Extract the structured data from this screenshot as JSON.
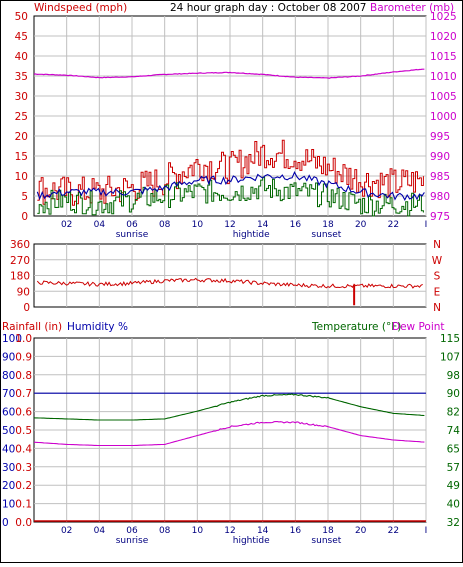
{
  "header": {
    "left_title": "Windspeed (mph)",
    "center_title": "24 hour graph day : October 08 2007",
    "right_title": "Barometer (mb)"
  },
  "x_axis": {
    "hour_ticks": [
      "02",
      "04",
      "06",
      "08",
      "10",
      "12",
      "14",
      "16",
      "18",
      "20",
      "22",
      "I"
    ],
    "events": [
      {
        "label": "sunrise",
        "hour": 6.0
      },
      {
        "label": "hightide",
        "hour": 13.3
      },
      {
        "label": "sunset",
        "hour": 17.9
      }
    ]
  },
  "colors": {
    "red": "#cc0000",
    "green": "#006600",
    "blue": "#0000aa",
    "magenta": "#cc00cc",
    "grid": "#c0c0c0"
  },
  "chart_data": [
    {
      "type": "line",
      "panel": "wind-barometer",
      "x_range": [
        0,
        24
      ],
      "y_left": {
        "label": "Windspeed (mph)",
        "ticks": [
          "0",
          "5",
          "10",
          "15",
          "20",
          "25",
          "30",
          "35",
          "40",
          "45",
          "50"
        ],
        "range": [
          0,
          50
        ]
      },
      "y_right": {
        "label": "Barometer (mb)",
        "ticks": [
          "975",
          "980",
          "985",
          "990",
          "995",
          "1000",
          "1005",
          "1010",
          "1015",
          "1020",
          "1025"
        ],
        "range": [
          975,
          1025
        ]
      },
      "series": [
        {
          "name": "Barometer",
          "axis": "right",
          "points": [
            [
              0,
              1010.5
            ],
            [
              2,
              1010.2
            ],
            [
              4,
              1009.6
            ],
            [
              6,
              1009.8
            ],
            [
              8,
              1010.4
            ],
            [
              10,
              1010.7
            ],
            [
              12,
              1010.9
            ],
            [
              14,
              1010.4
            ],
            [
              16,
              1009.7
            ],
            [
              18,
              1009.5
            ],
            [
              20,
              1010.0
            ],
            [
              22,
              1011.0
            ],
            [
              24,
              1011.8
            ]
          ]
        },
        {
          "name": "Gust",
          "axis": "left",
          "points": [
            [
              0,
              7
            ],
            [
              2,
              6
            ],
            [
              4,
              6
            ],
            [
              6,
              7
            ],
            [
              8,
              9
            ],
            [
              10,
              13
            ],
            [
              12,
              12
            ],
            [
              14,
              16
            ],
            [
              16,
              15
            ],
            [
              18,
              12
            ],
            [
              20,
              9
            ],
            [
              22,
              8
            ],
            [
              24,
              9
            ]
          ]
        },
        {
          "name": "Average",
          "axis": "left",
          "points": [
            [
              0,
              5
            ],
            [
              2,
              6
            ],
            [
              4,
              6
            ],
            [
              6,
              6
            ],
            [
              8,
              7
            ],
            [
              10,
              9
            ],
            [
              12,
              9
            ],
            [
              14,
              10
            ],
            [
              16,
              10
            ],
            [
              18,
              8
            ],
            [
              20,
              6
            ],
            [
              22,
              5
            ],
            [
              24,
              5
            ]
          ]
        },
        {
          "name": "Speed",
          "axis": "left",
          "points": [
            [
              0,
              3
            ],
            [
              2,
              4
            ],
            [
              4,
              3
            ],
            [
              6,
              4
            ],
            [
              8,
              5
            ],
            [
              10,
              6
            ],
            [
              12,
              6
            ],
            [
              14,
              7
            ],
            [
              16,
              6
            ],
            [
              18,
              5
            ],
            [
              20,
              3
            ],
            [
              22,
              3
            ],
            [
              24,
              3
            ]
          ]
        }
      ]
    },
    {
      "type": "line",
      "panel": "wind-direction",
      "x_range": [
        0,
        24
      ],
      "y_left": {
        "ticks": [
          "0",
          "90",
          "180",
          "270",
          "360"
        ],
        "range": [
          0,
          360
        ]
      },
      "y_right": {
        "ticks": [
          "N",
          "E",
          "S",
          "W",
          "N"
        ]
      },
      "series": [
        {
          "name": "Direction",
          "axis": "left",
          "points": [
            [
              0,
              140
            ],
            [
              2,
              135
            ],
            [
              4,
              130
            ],
            [
              6,
              135
            ],
            [
              8,
              150
            ],
            [
              10,
              155
            ],
            [
              12,
              150
            ],
            [
              14,
              135
            ],
            [
              16,
              125
            ],
            [
              18,
              120
            ],
            [
              20,
              120
            ],
            [
              22,
              120
            ],
            [
              24,
              120
            ]
          ]
        }
      ]
    },
    {
      "type": "line",
      "panel": "temp-humidity",
      "x_range": [
        0,
        24
      ],
      "header": {
        "rainfall": "Rainfall (in)",
        "humidity": "Humidity %",
        "temperature": "Temperature (°F)",
        "dew_point": "Dew Point"
      },
      "y_humidity": {
        "ticks": [
          "0",
          "10",
          "20",
          "30",
          "40",
          "50",
          "60",
          "70",
          "80",
          "90",
          "100"
        ],
        "range": [
          0,
          100
        ]
      },
      "y_rainfall": {
        "ticks": [
          "0.0",
          "0.1",
          "0.2",
          "0.3",
          "0.4",
          "0.5",
          "0.6",
          "0.7",
          "0.8",
          "0.9",
          "1.0"
        ],
        "range": [
          0,
          1.0
        ]
      },
      "y_right": {
        "ticks": [
          "32",
          "40",
          "49",
          "57",
          "65",
          "74",
          "82",
          "90",
          "98",
          "107",
          "115"
        ],
        "range": [
          32,
          115
        ]
      },
      "series": [
        {
          "name": "Humidity",
          "axis": "humidity",
          "points": [
            [
              0,
              70
            ],
            [
              24,
              70
            ]
          ]
        },
        {
          "name": "Temperature",
          "axis": "right",
          "points": [
            [
              0,
              79
            ],
            [
              2,
              78.5
            ],
            [
              4,
              78
            ],
            [
              6,
              78
            ],
            [
              8,
              78.5
            ],
            [
              10,
              82
            ],
            [
              12,
              86
            ],
            [
              14,
              89
            ],
            [
              16,
              89.5
            ],
            [
              18,
              88
            ],
            [
              20,
              84
            ],
            [
              22,
              81
            ],
            [
              24,
              80
            ]
          ]
        },
        {
          "name": "Dew Point",
          "axis": "right",
          "points": [
            [
              0,
              68
            ],
            [
              2,
              67
            ],
            [
              4,
              66.5
            ],
            [
              6,
              66.5
            ],
            [
              8,
              67
            ],
            [
              10,
              71
            ],
            [
              12,
              75
            ],
            [
              14,
              77
            ],
            [
              16,
              77
            ],
            [
              18,
              75
            ],
            [
              20,
              71
            ],
            [
              22,
              69
            ],
            [
              24,
              68
            ]
          ]
        },
        {
          "name": "Rainfall",
          "axis": "rainfall",
          "points": [
            [
              0,
              0.0
            ],
            [
              24,
              0.0
            ]
          ]
        }
      ]
    }
  ]
}
